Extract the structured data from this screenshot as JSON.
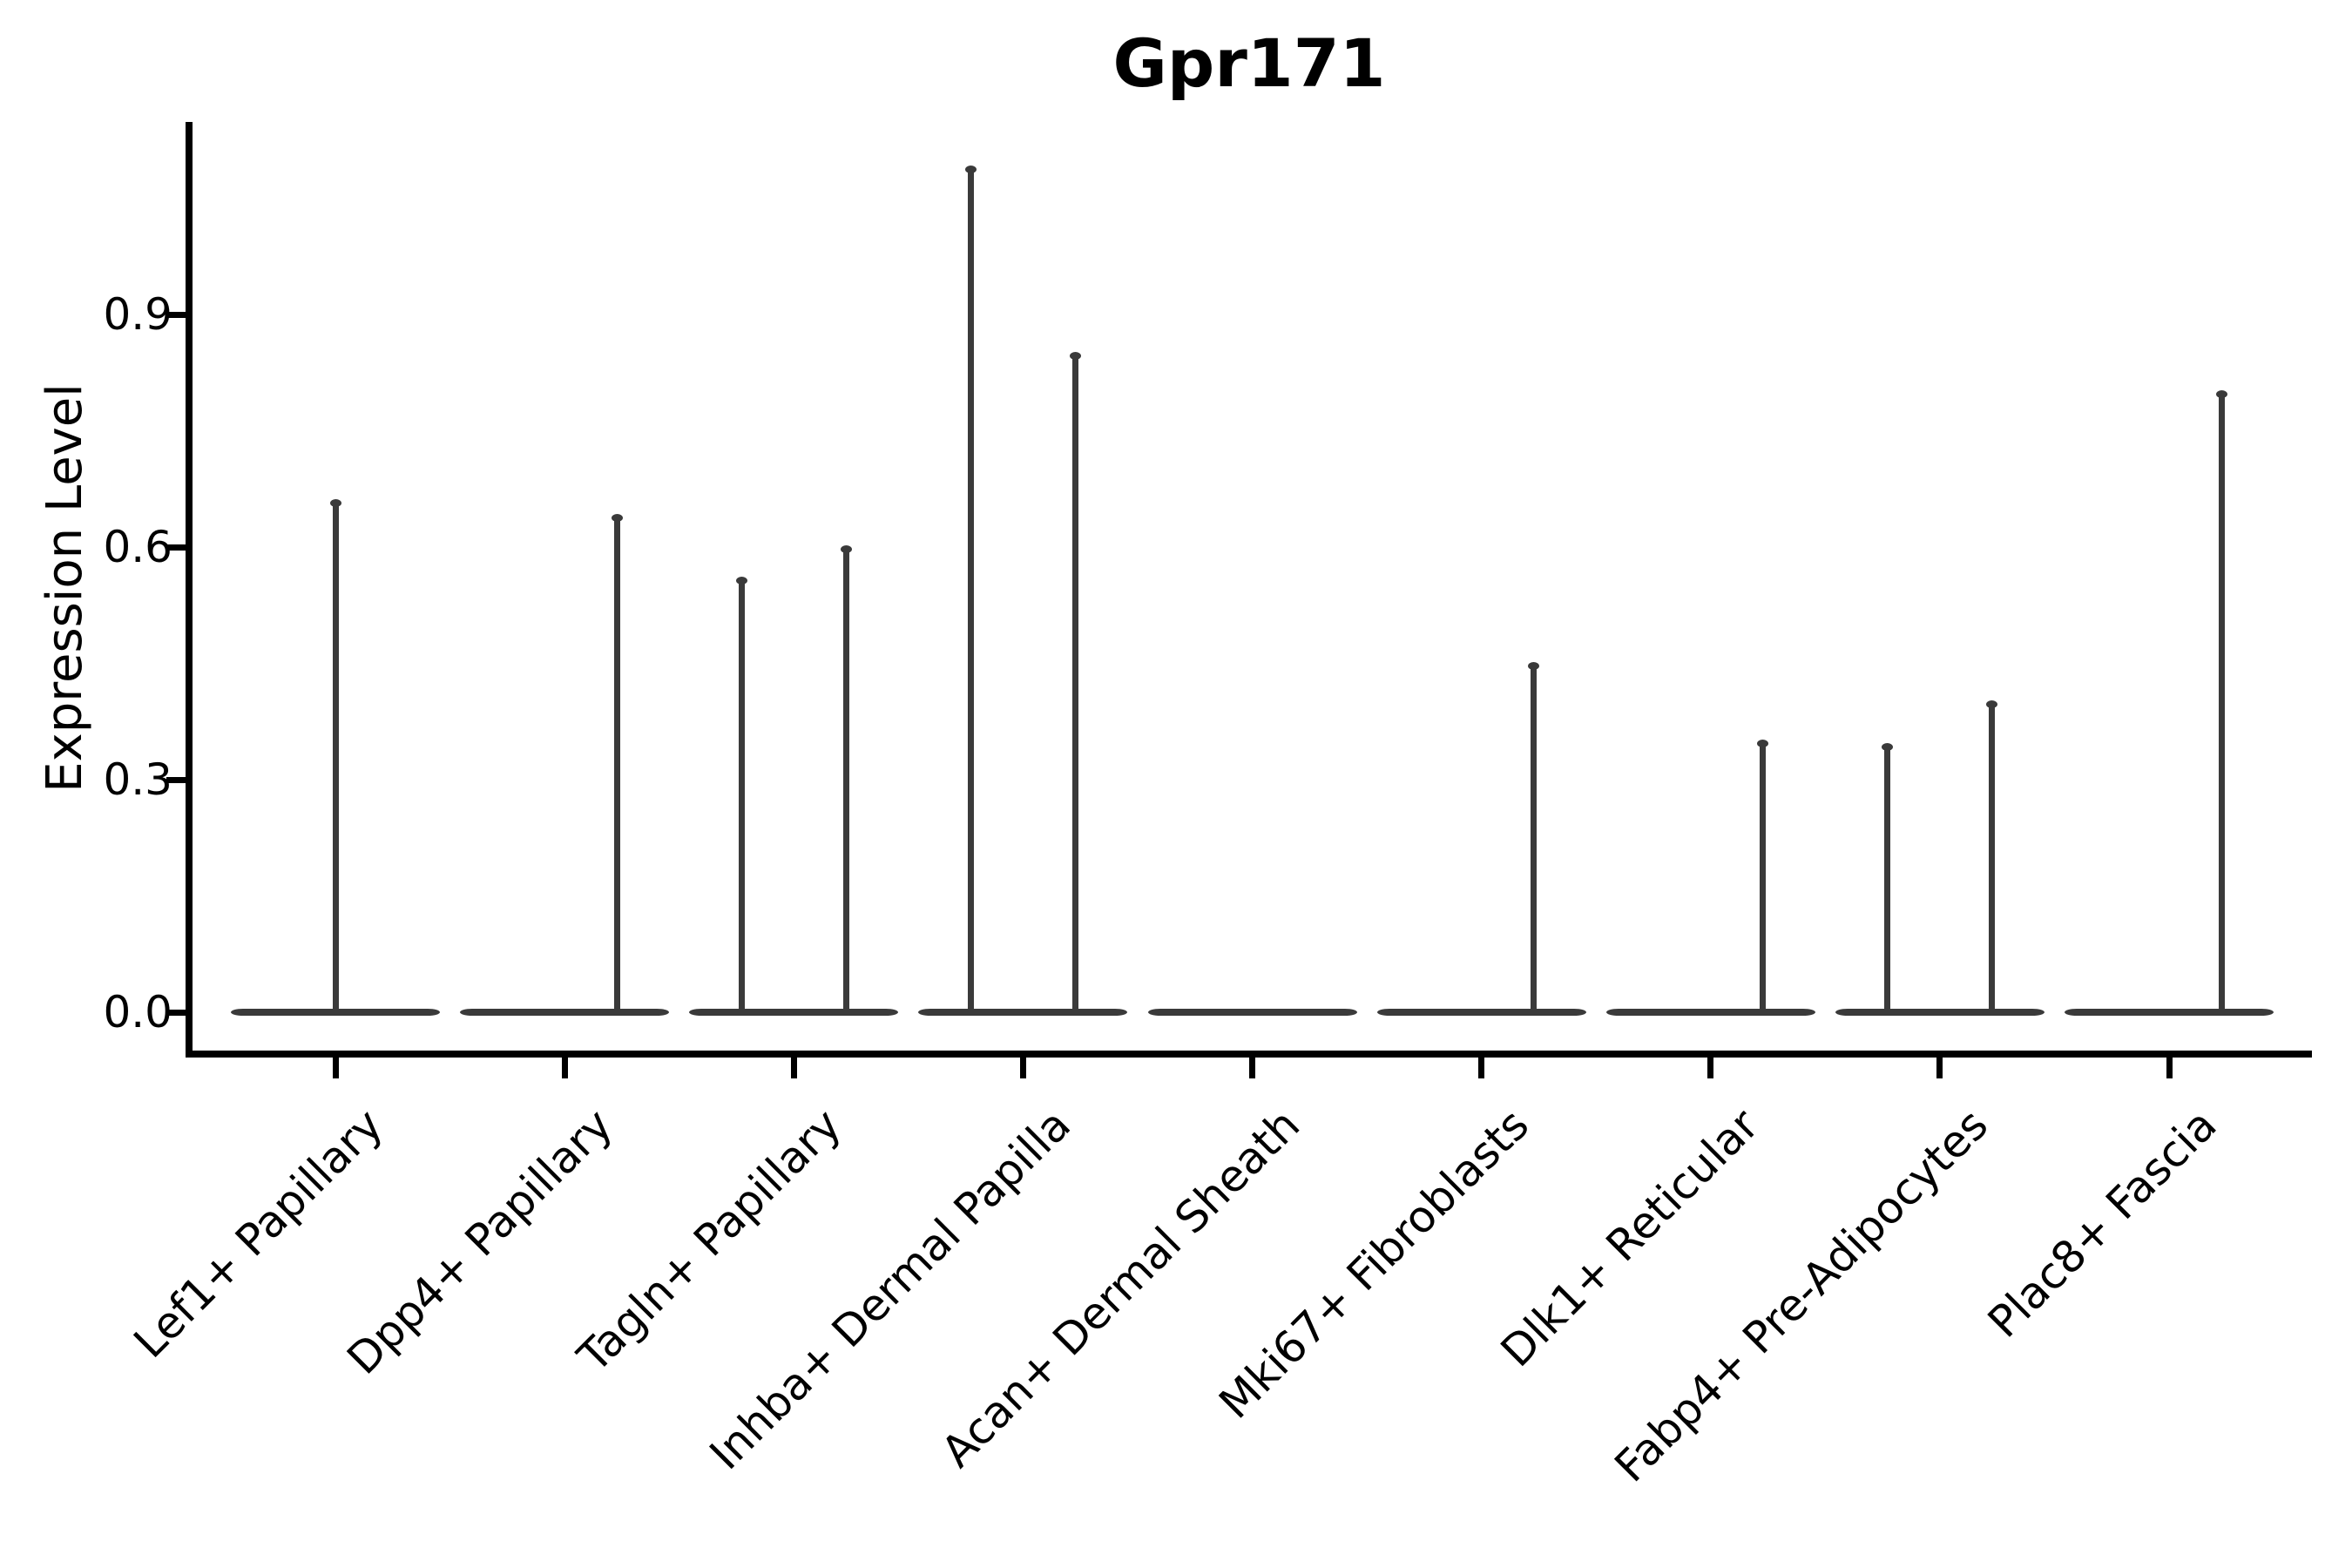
{
  "title": "Gpr171",
  "y_axis": {
    "label": "Expression Level",
    "ticks": [
      "0.0",
      "0.3",
      "0.6",
      "0.9"
    ]
  },
  "x_axis": {
    "categories": [
      "Lef1+ Papillary",
      "Dpp4+ Papillary",
      "Tagln+ Papillary",
      "Inhba+ Dermal Papilla",
      "Acan+ Dermal Sheath",
      "Mki67+ Fibroblasts",
      "Dlk1+ Reticular",
      "Fabp4+ Pre-Adipocytes",
      "Plac8+ Fascia"
    ],
    "note": ""
  },
  "chart_data": {
    "type": "violin",
    "title": "Gpr171",
    "xlabel": "",
    "ylabel": "Expression Level",
    "ylim": [
      -0.054,
      1.15
    ],
    "yticks": [
      0.0,
      0.3,
      0.6,
      0.9
    ],
    "grid": false,
    "legend": "none",
    "line_color": "#3a3a3a",
    "axis_color": "#000000",
    "categories": [
      "Lef1+ Papillary",
      "Dpp4+ Papillary",
      "Tagln+ Papillary",
      "Inhba+ Dermal Papilla",
      "Acan+ Dermal Sheath",
      "Mki67+ Fibroblasts",
      "Dlk1+ Reticular",
      "Fabp4+ Pre-Adipocytes",
      "Plac8+ Fascia"
    ],
    "violins": [
      {
        "category": "Lef1+ Papillary",
        "zero_body": true,
        "spikes": [
          {
            "offset": "center",
            "max": 0.66
          }
        ]
      },
      {
        "category": "Dpp4+ Papillary",
        "zero_body": true,
        "spikes": [
          {
            "offset": "right",
            "max": 0.64
          }
        ]
      },
      {
        "category": "Tagln+ Papillary",
        "zero_body": true,
        "spikes": [
          {
            "offset": "left",
            "max": 0.56
          },
          {
            "offset": "right",
            "max": 0.6
          }
        ]
      },
      {
        "category": "Inhba+ Dermal Papilla",
        "zero_body": true,
        "spikes": [
          {
            "offset": "left",
            "max": 1.09
          },
          {
            "offset": "right",
            "max": 0.85
          }
        ]
      },
      {
        "category": "Acan+ Dermal Sheath",
        "zero_body": true,
        "spikes": []
      },
      {
        "category": "Mki67+ Fibroblasts",
        "zero_body": true,
        "spikes": [
          {
            "offset": "right",
            "max": 0.45
          }
        ]
      },
      {
        "category": "Dlk1+ Reticular",
        "zero_body": true,
        "spikes": [
          {
            "offset": "right",
            "max": 0.35
          }
        ]
      },
      {
        "category": "Fabp4+ Pre-Adipocytes",
        "zero_body": true,
        "spikes": [
          {
            "offset": "left",
            "max": 0.345
          },
          {
            "offset": "right",
            "max": 0.4
          }
        ]
      },
      {
        "category": "Plac8+ Fascia",
        "zero_body": true,
        "spikes": [
          {
            "offset": "right",
            "max": 0.8
          }
        ]
      }
    ]
  }
}
